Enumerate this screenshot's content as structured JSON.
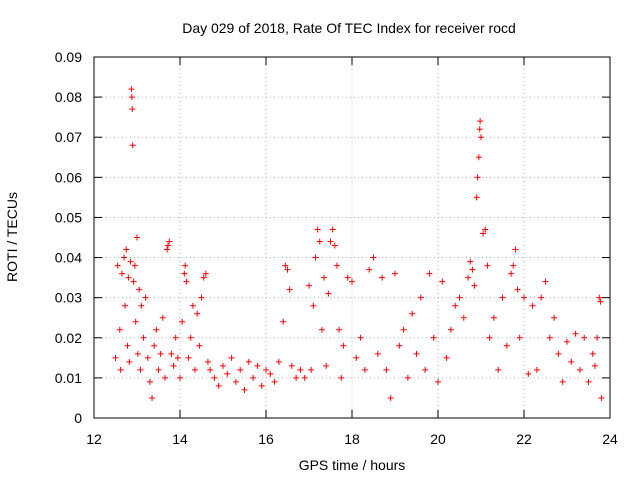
{
  "chart_data": {
    "type": "scatter",
    "title": "Day 029 of 2018, Rate Of TEC Index for receiver rocd",
    "xlabel": "GPS time / hours",
    "ylabel": "ROTI / TECUs",
    "xlim": [
      12,
      24
    ],
    "ylim": [
      0,
      0.09
    ],
    "xticks": [
      12,
      14,
      16,
      18,
      20,
      22,
      24
    ],
    "xtick_labels": [
      "12",
      "14",
      "16",
      "18",
      "20",
      "22",
      "24"
    ],
    "yticks": [
      0,
      0.01,
      0.02,
      0.03,
      0.04,
      0.05,
      0.06,
      0.07,
      0.08,
      0.09
    ],
    "ytick_labels": [
      "0",
      "0.01",
      "0.02",
      "0.03",
      "0.04",
      "0.05",
      "0.06",
      "0.07",
      "0.08",
      "0.09"
    ],
    "grid": true,
    "marker": "+",
    "marker_color": "#ff0000",
    "series": [
      {
        "name": "ROTI",
        "points": [
          [
            12.5,
            0.015
          ],
          [
            12.55,
            0.038
          ],
          [
            12.6,
            0.022
          ],
          [
            12.62,
            0.012
          ],
          [
            12.65,
            0.036
          ],
          [
            12.7,
            0.04
          ],
          [
            12.72,
            0.028
          ],
          [
            12.75,
            0.042
          ],
          [
            12.78,
            0.018
          ],
          [
            12.8,
            0.035
          ],
          [
            12.82,
            0.014
          ],
          [
            12.85,
            0.039
          ],
          [
            12.87,
            0.082
          ],
          [
            12.88,
            0.08
          ],
          [
            12.89,
            0.077
          ],
          [
            12.9,
            0.068
          ],
          [
            12.92,
            0.034
          ],
          [
            12.95,
            0.038
          ],
          [
            12.97,
            0.024
          ],
          [
            13.0,
            0.045
          ],
          [
            13.02,
            0.016
          ],
          [
            13.05,
            0.032
          ],
          [
            13.08,
            0.012
          ],
          [
            13.1,
            0.028
          ],
          [
            13.15,
            0.02
          ],
          [
            13.2,
            0.03
          ],
          [
            13.25,
            0.015
          ],
          [
            13.3,
            0.009
          ],
          [
            13.35,
            0.005
          ],
          [
            13.4,
            0.018
          ],
          [
            13.45,
            0.022
          ],
          [
            13.5,
            0.012
          ],
          [
            13.55,
            0.016
          ],
          [
            13.6,
            0.025
          ],
          [
            13.65,
            0.01
          ],
          [
            13.7,
            0.042
          ],
          [
            13.72,
            0.043
          ],
          [
            13.75,
            0.044
          ],
          [
            13.8,
            0.016
          ],
          [
            13.85,
            0.013
          ],
          [
            13.9,
            0.02
          ],
          [
            13.95,
            0.015
          ],
          [
            14.0,
            0.01
          ],
          [
            14.05,
            0.024
          ],
          [
            14.1,
            0.036
          ],
          [
            14.12,
            0.038
          ],
          [
            14.15,
            0.034
          ],
          [
            14.2,
            0.015
          ],
          [
            14.25,
            0.02
          ],
          [
            14.3,
            0.028
          ],
          [
            14.35,
            0.012
          ],
          [
            14.4,
            0.026
          ],
          [
            14.45,
            0.018
          ],
          [
            14.5,
            0.03
          ],
          [
            14.55,
            0.035
          ],
          [
            14.6,
            0.036
          ],
          [
            14.65,
            0.014
          ],
          [
            14.7,
            0.012
          ],
          [
            14.8,
            0.01
          ],
          [
            14.9,
            0.008
          ],
          [
            15.0,
            0.013
          ],
          [
            15.1,
            0.011
          ],
          [
            15.2,
            0.015
          ],
          [
            15.3,
            0.009
          ],
          [
            15.4,
            0.012
          ],
          [
            15.5,
            0.007
          ],
          [
            15.6,
            0.014
          ],
          [
            15.7,
            0.01
          ],
          [
            15.8,
            0.013
          ],
          [
            15.9,
            0.008
          ],
          [
            16.0,
            0.012
          ],
          [
            16.1,
            0.011
          ],
          [
            16.2,
            0.009
          ],
          [
            16.3,
            0.014
          ],
          [
            16.4,
            0.024
          ],
          [
            16.45,
            0.038
          ],
          [
            16.5,
            0.037
          ],
          [
            16.55,
            0.032
          ],
          [
            16.6,
            0.013
          ],
          [
            16.7,
            0.01
          ],
          [
            16.8,
            0.012
          ],
          [
            16.9,
            0.01
          ],
          [
            17.0,
            0.033
          ],
          [
            17.05,
            0.012
          ],
          [
            17.1,
            0.028
          ],
          [
            17.15,
            0.04
          ],
          [
            17.2,
            0.047
          ],
          [
            17.25,
            0.044
          ],
          [
            17.3,
            0.022
          ],
          [
            17.35,
            0.035
          ],
          [
            17.4,
            0.013
          ],
          [
            17.45,
            0.031
          ],
          [
            17.5,
            0.044
          ],
          [
            17.55,
            0.047
          ],
          [
            17.6,
            0.043
          ],
          [
            17.65,
            0.038
          ],
          [
            17.7,
            0.022
          ],
          [
            17.75,
            0.01
          ],
          [
            17.8,
            0.018
          ],
          [
            17.9,
            0.035
          ],
          [
            18.0,
            0.034
          ],
          [
            18.1,
            0.015
          ],
          [
            18.2,
            0.02
          ],
          [
            18.3,
            0.012
          ],
          [
            18.4,
            0.037
          ],
          [
            18.5,
            0.04
          ],
          [
            18.6,
            0.016
          ],
          [
            18.7,
            0.035
          ],
          [
            18.8,
            0.012
          ],
          [
            18.9,
            0.005
          ],
          [
            19.0,
            0.036
          ],
          [
            19.1,
            0.018
          ],
          [
            19.2,
            0.022
          ],
          [
            19.3,
            0.01
          ],
          [
            19.4,
            0.026
          ],
          [
            19.5,
            0.016
          ],
          [
            19.6,
            0.03
          ],
          [
            19.7,
            0.012
          ],
          [
            19.8,
            0.036
          ],
          [
            19.9,
            0.02
          ],
          [
            20.0,
            0.009
          ],
          [
            20.1,
            0.034
          ],
          [
            20.2,
            0.015
          ],
          [
            20.3,
            0.022
          ],
          [
            20.4,
            0.028
          ],
          [
            20.5,
            0.03
          ],
          [
            20.6,
            0.025
          ],
          [
            20.7,
            0.035
          ],
          [
            20.75,
            0.039
          ],
          [
            20.8,
            0.037
          ],
          [
            20.85,
            0.033
          ],
          [
            20.9,
            0.055
          ],
          [
            20.92,
            0.06
          ],
          [
            20.95,
            0.065
          ],
          [
            20.97,
            0.072
          ],
          [
            20.98,
            0.074
          ],
          [
            21.0,
            0.07
          ],
          [
            21.05,
            0.046
          ],
          [
            21.1,
            0.047
          ],
          [
            21.15,
            0.038
          ],
          [
            21.2,
            0.02
          ],
          [
            21.3,
            0.025
          ],
          [
            21.4,
            0.012
          ],
          [
            21.5,
            0.03
          ],
          [
            21.6,
            0.018
          ],
          [
            21.7,
            0.036
          ],
          [
            21.75,
            0.038
          ],
          [
            21.8,
            0.042
          ],
          [
            21.85,
            0.032
          ],
          [
            21.9,
            0.02
          ],
          [
            22.0,
            0.03
          ],
          [
            22.1,
            0.011
          ],
          [
            22.2,
            0.028
          ],
          [
            22.3,
            0.012
          ],
          [
            22.4,
            0.03
          ],
          [
            22.5,
            0.034
          ],
          [
            22.6,
            0.02
          ],
          [
            22.7,
            0.025
          ],
          [
            22.8,
            0.016
          ],
          [
            22.9,
            0.009
          ],
          [
            23.0,
            0.019
          ],
          [
            23.1,
            0.014
          ],
          [
            23.2,
            0.021
          ],
          [
            23.3,
            0.012
          ],
          [
            23.4,
            0.02
          ],
          [
            23.5,
            0.009
          ],
          [
            23.6,
            0.016
          ],
          [
            23.65,
            0.013
          ],
          [
            23.7,
            0.02
          ],
          [
            23.75,
            0.03
          ],
          [
            23.78,
            0.029
          ],
          [
            23.8,
            0.005
          ]
        ]
      }
    ]
  }
}
